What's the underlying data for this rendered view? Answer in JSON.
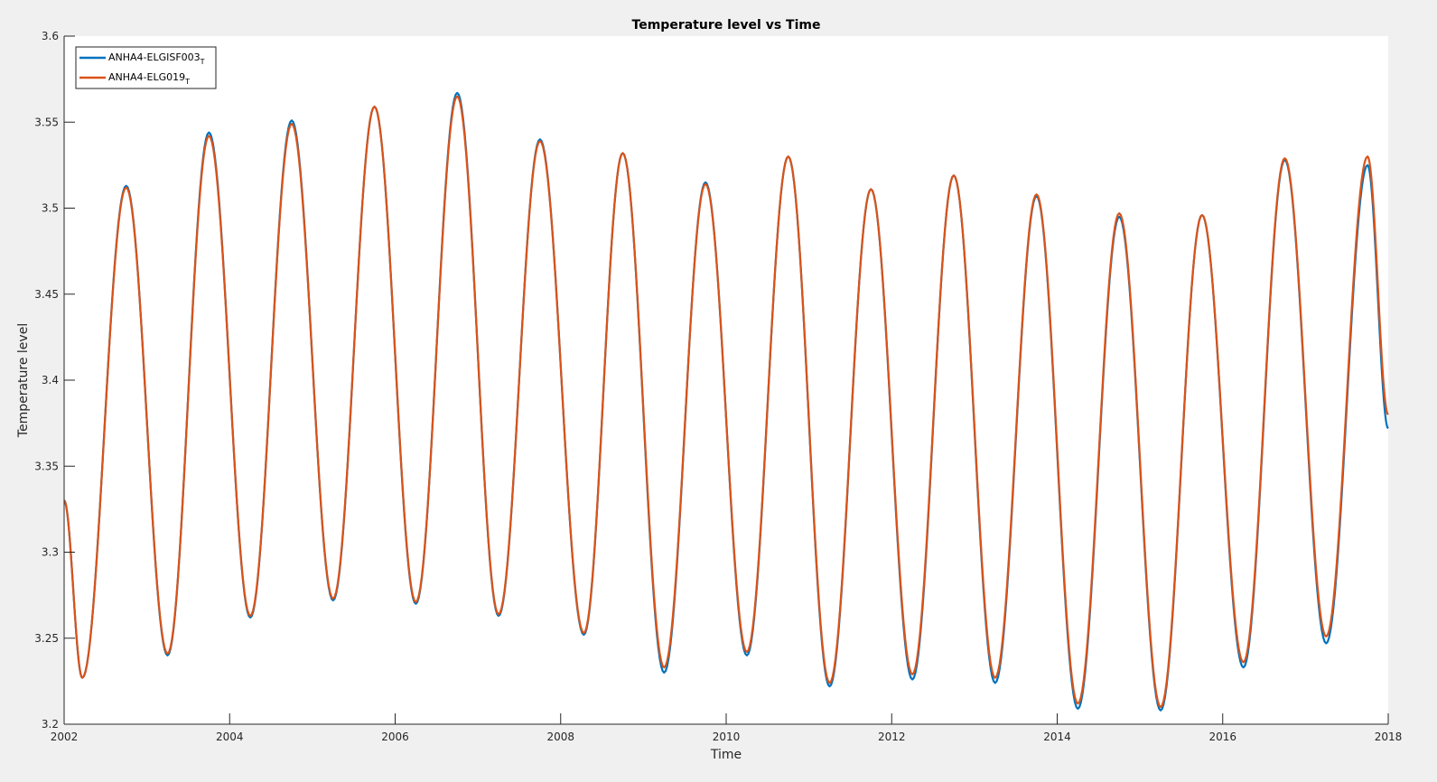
{
  "chart_data": {
    "type": "line",
    "title": "Temperature level vs Time",
    "xlabel": "Time",
    "ylabel": "Temperature level",
    "xlim": [
      2002,
      2018
    ],
    "ylim": [
      3.2,
      3.6
    ],
    "xticks": [
      "2002",
      "2004",
      "2006",
      "2008",
      "2010",
      "2012",
      "2014",
      "2016",
      "2018"
    ],
    "yticks": [
      "3.2",
      "3.25",
      "3.3",
      "3.35",
      "3.4",
      "3.45",
      "3.5",
      "3.55",
      "3.6"
    ],
    "grid": false,
    "legend_position": "top-left",
    "series": [
      {
        "name": "ANHA4-ELGISF003",
        "name_sub": "T",
        "color": "#0072bd",
        "extrema": [
          [
            2002.0,
            3.33
          ],
          [
            2002.22,
            3.227
          ],
          [
            2002.75,
            3.513
          ],
          [
            2003.25,
            3.24
          ],
          [
            2003.75,
            3.544
          ],
          [
            2004.25,
            3.262
          ],
          [
            2004.75,
            3.551
          ],
          [
            2005.25,
            3.272
          ],
          [
            2005.75,
            3.559
          ],
          [
            2006.25,
            3.27
          ],
          [
            2006.75,
            3.567
          ],
          [
            2007.25,
            3.263
          ],
          [
            2007.75,
            3.54
          ],
          [
            2008.28,
            3.252
          ],
          [
            2008.75,
            3.532
          ],
          [
            2009.25,
            3.23
          ],
          [
            2009.75,
            3.515
          ],
          [
            2010.25,
            3.24
          ],
          [
            2010.75,
            3.53
          ],
          [
            2011.25,
            3.222
          ],
          [
            2011.75,
            3.511
          ],
          [
            2012.25,
            3.226
          ],
          [
            2012.75,
            3.519
          ],
          [
            2013.25,
            3.224
          ],
          [
            2013.75,
            3.507
          ],
          [
            2014.25,
            3.209
          ],
          [
            2014.75,
            3.495
          ],
          [
            2015.25,
            3.208
          ],
          [
            2015.75,
            3.496
          ],
          [
            2016.25,
            3.233
          ],
          [
            2016.75,
            3.528
          ],
          [
            2017.25,
            3.247
          ],
          [
            2017.75,
            3.525
          ],
          [
            2018.0,
            3.372
          ]
        ]
      },
      {
        "name": "ANHA4-ELG019",
        "name_sub": "T",
        "color": "#d95319",
        "extrema": [
          [
            2002.0,
            3.33
          ],
          [
            2002.22,
            3.227
          ],
          [
            2002.75,
            3.512
          ],
          [
            2003.25,
            3.241
          ],
          [
            2003.75,
            3.542
          ],
          [
            2004.25,
            3.263
          ],
          [
            2004.75,
            3.549
          ],
          [
            2005.25,
            3.273
          ],
          [
            2005.75,
            3.559
          ],
          [
            2006.25,
            3.271
          ],
          [
            2006.75,
            3.565
          ],
          [
            2007.25,
            3.264
          ],
          [
            2007.75,
            3.539
          ],
          [
            2008.28,
            3.253
          ],
          [
            2008.75,
            3.532
          ],
          [
            2009.25,
            3.233
          ],
          [
            2009.75,
            3.514
          ],
          [
            2010.25,
            3.242
          ],
          [
            2010.75,
            3.53
          ],
          [
            2011.25,
            3.224
          ],
          [
            2011.75,
            3.511
          ],
          [
            2012.25,
            3.229
          ],
          [
            2012.75,
            3.519
          ],
          [
            2013.25,
            3.227
          ],
          [
            2013.75,
            3.508
          ],
          [
            2014.25,
            3.212
          ],
          [
            2014.75,
            3.497
          ],
          [
            2015.25,
            3.21
          ],
          [
            2015.75,
            3.496
          ],
          [
            2016.25,
            3.236
          ],
          [
            2016.75,
            3.529
          ],
          [
            2017.25,
            3.251
          ],
          [
            2017.75,
            3.53
          ],
          [
            2018.0,
            3.38
          ]
        ]
      }
    ]
  }
}
